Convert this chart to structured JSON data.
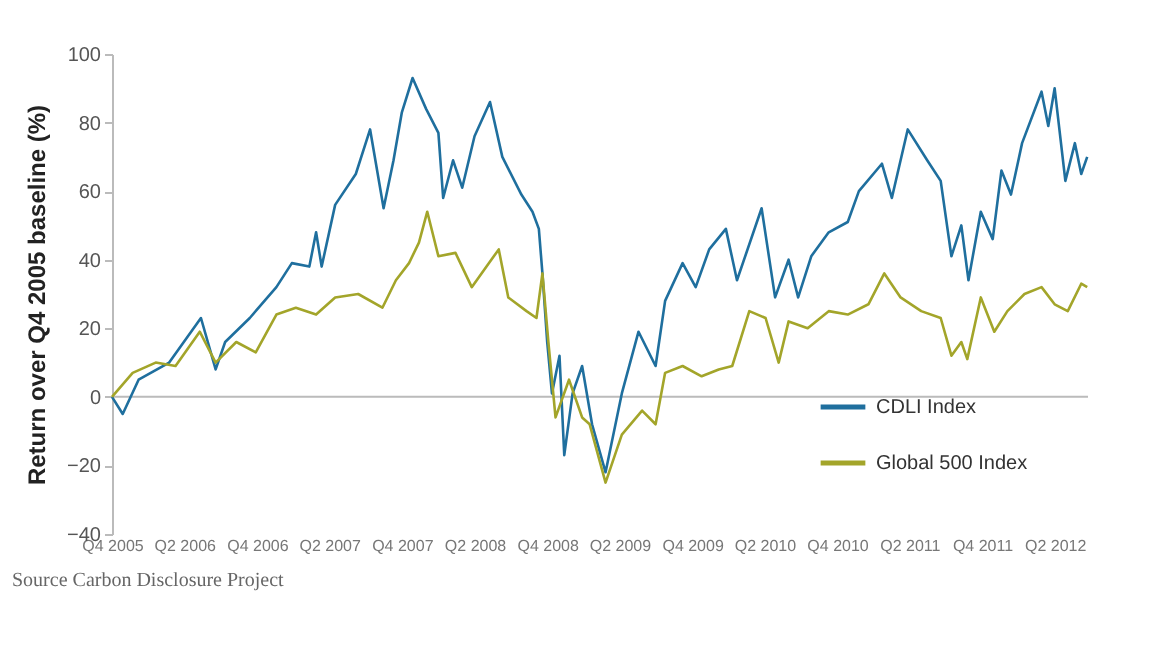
{
  "chart_data": {
    "type": "line",
    "ylabel": "Return over Q4 2005 baseline (%)",
    "annotations": [
      "Source  Carbon Disclosure Project"
    ],
    "xlim": [
      "2005-10-01",
      "2012-06-24"
    ],
    "xticks": [
      {
        "value": "2005-10-01",
        "label": "Q4 2005"
      },
      {
        "value": "2006-04-01",
        "label": "Q2 2006"
      },
      {
        "value": "2006-10-01",
        "label": "Q4 2006"
      },
      {
        "value": "2007-04-01",
        "label": "Q2 2007"
      },
      {
        "value": "2007-10-01",
        "label": "Q4 2007"
      },
      {
        "value": "2008-04-01",
        "label": "Q2 2008"
      },
      {
        "value": "2008-10-01",
        "label": "Q4 2008"
      },
      {
        "value": "2009-04-01",
        "label": "Q2 2009"
      },
      {
        "value": "2009-10-01",
        "label": "Q4 2009"
      },
      {
        "value": "2010-04-01",
        "label": "Q2 2010"
      },
      {
        "value": "2010-10-01",
        "label": "Q4 2010"
      },
      {
        "value": "2011-04-01",
        "label": "Q2 2011"
      },
      {
        "value": "2011-10-01",
        "label": "Q4 2011"
      },
      {
        "value": "2012-04-01",
        "label": "Q2 2012"
      }
    ],
    "ylim": [
      -40,
      100
    ],
    "yticks": [
      -40,
      -20,
      0,
      20,
      40,
      60,
      80,
      100
    ],
    "grid": false,
    "ref_lines": [
      {
        "axis": "y",
        "value": 0,
        "color": "#bbbbbb"
      }
    ],
    "legend": "bottom right",
    "marker": "none",
    "line_style": "solid",
    "series": [
      {
        "name": "CDLI Index",
        "color": "#1f6f9e",
        "x": [
          "2005-10-01",
          "2005-10-28",
          "2005-12-07",
          "2006-02-22",
          "2006-05-13",
          "2006-06-19",
          "2006-07-13",
          "2006-09-13",
          "2006-11-19",
          "2006-12-28",
          "2007-02-10",
          "2007-02-27",
          "2007-03-13",
          "2007-04-16",
          "2007-06-07",
          "2007-07-13",
          "2007-08-16",
          "2007-09-10",
          "2007-10-01",
          "2007-10-28",
          "2007-12-01",
          "2008-01-01",
          "2008-01-13",
          "2008-02-07",
          "2008-03-01",
          "2008-04-01",
          "2008-05-10",
          "2008-06-10",
          "2008-07-28",
          "2008-08-25",
          "2008-09-10",
          "2008-09-19",
          "2008-10-01",
          "2008-10-13",
          "2008-11-01",
          "2008-11-13",
          "2008-12-04",
          "2008-12-28",
          "2009-01-22",
          "2009-02-25",
          "2009-04-07",
          "2009-05-19",
          "2009-07-01",
          "2009-07-25",
          "2009-09-07",
          "2009-10-10",
          "2009-11-13",
          "2009-12-25",
          "2010-01-22",
          "2010-03-25",
          "2010-04-28",
          "2010-06-01",
          "2010-06-25",
          "2010-07-28",
          "2010-09-10",
          "2010-10-28",
          "2010-11-25",
          "2011-01-22",
          "2011-02-16",
          "2011-03-28",
          "2011-05-16",
          "2011-06-19",
          "2011-07-16",
          "2011-08-10",
          "2011-08-28",
          "2011-09-28",
          "2011-10-28",
          "2011-11-19",
          "2011-12-13",
          "2012-01-10",
          "2012-02-28",
          "2012-03-16",
          "2012-04-01",
          "2012-04-28",
          "2012-05-22",
          "2012-06-07",
          "2012-06-22"
        ],
        "values": [
          0,
          -5,
          5,
          10,
          23,
          8,
          16,
          23,
          32,
          39,
          38,
          48,
          38,
          56,
          65,
          78,
          55,
          69,
          83,
          93,
          84,
          77,
          58,
          69,
          61,
          76,
          86,
          70,
          59,
          54,
          49,
          36,
          16,
          1,
          12,
          -17,
          1,
          9,
          -8,
          -22,
          1,
          19,
          9,
          28,
          39,
          32,
          43,
          49,
          34,
          55,
          29,
          40,
          29,
          41,
          48,
          51,
          60,
          68,
          58,
          78,
          69,
          63,
          41,
          50,
          34,
          54,
          46,
          66,
          59,
          74,
          89,
          79,
          90,
          63,
          74,
          65,
          70
        ]
      },
      {
        "name": "Global 500 Index",
        "color": "#a3a52a",
        "x": [
          "2005-10-01",
          "2005-11-22",
          "2006-01-19",
          "2006-03-10",
          "2006-05-10",
          "2006-06-19",
          "2006-08-10",
          "2006-09-28",
          "2006-11-19",
          "2007-01-07",
          "2007-02-27",
          "2007-04-16",
          "2007-06-13",
          "2007-08-13",
          "2007-09-16",
          "2007-10-19",
          "2007-11-13",
          "2007-12-04",
          "2008-01-01",
          "2008-02-13",
          "2008-03-25",
          "2008-05-07",
          "2008-06-01",
          "2008-06-25",
          "2008-08-10",
          "2008-09-04",
          "2008-09-19",
          "2008-10-04",
          "2008-10-22",
          "2008-11-25",
          "2008-12-28",
          "2009-01-16",
          "2009-02-25",
          "2009-04-07",
          "2009-05-28",
          "2009-07-01",
          "2009-07-25",
          "2009-09-07",
          "2009-10-25",
          "2009-12-07",
          "2010-01-10",
          "2010-02-22",
          "2010-04-04",
          "2010-05-07",
          "2010-06-01",
          "2010-07-19",
          "2010-09-10",
          "2010-10-28",
          "2010-12-19",
          "2011-01-28",
          "2011-03-10",
          "2011-05-01",
          "2011-06-19",
          "2011-07-16",
          "2011-08-10",
          "2011-08-25",
          "2011-09-28",
          "2011-11-01",
          "2011-12-04",
          "2012-01-16",
          "2012-02-28",
          "2012-04-01",
          "2012-05-04",
          "2012-06-07",
          "2012-06-22"
        ],
        "values": [
          0,
          7,
          10,
          9,
          19,
          10,
          16,
          13,
          24,
          26,
          24,
          29,
          30,
          26,
          34,
          39,
          45,
          54,
          41,
          42,
          32,
          39,
          43,
          29,
          25,
          23,
          36,
          16,
          -6,
          5,
          -6,
          -8,
          -25,
          -11,
          -4,
          -8,
          7,
          9,
          6,
          8,
          9,
          25,
          23,
          10,
          22,
          20,
          25,
          24,
          27,
          36,
          29,
          25,
          23,
          12,
          16,
          11,
          29,
          19,
          25,
          30,
          32,
          27,
          25,
          33,
          32
        ]
      }
    ]
  }
}
